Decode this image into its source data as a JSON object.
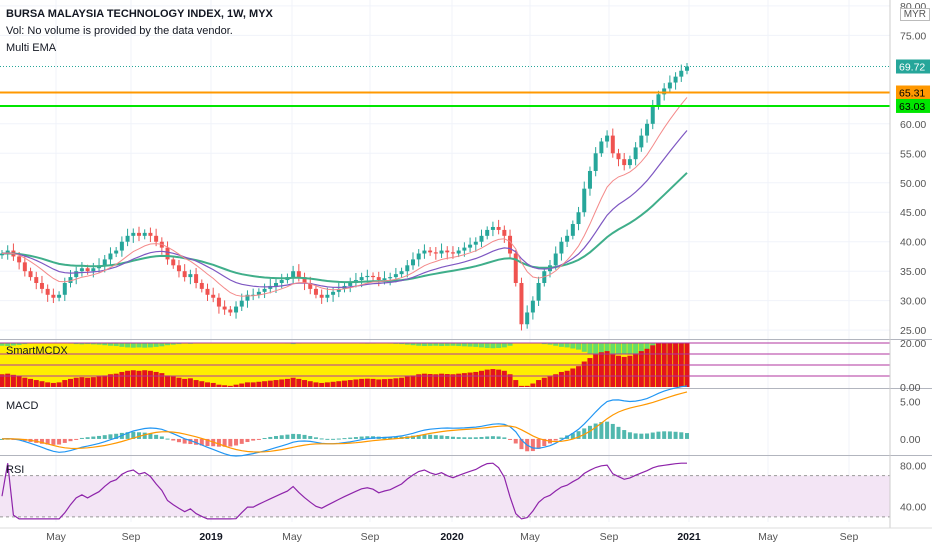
{
  "header": {
    "title": "BURSA MALAYSIA TECHNOLOGY INDEX, 1W, MYX",
    "vol_note": "Vol: No volume is provided by the data vendor.",
    "indicator": "Multi EMA",
    "currency": "MYR"
  },
  "colors": {
    "up": "#26a69a",
    "down": "#ef5350",
    "ema1": "#f48a8a",
    "ema2": "#7e57c2",
    "ema3": "#3fae8a",
    "orange_line": "#ff9800",
    "green_line": "#00e600",
    "last_price": "#26a69a",
    "macd": "#2196f3",
    "signal": "#ff9800",
    "rsi": "#8e24aa",
    "rsi_band": "#f3e5f5",
    "mcdx_red": "#e3141c",
    "mcdx_yellow": "#ffee00",
    "mcdx_green": "#66dd66"
  },
  "chart_data": [
    {
      "type": "candlestick",
      "title": "BURSA MALAYSIA TECHNOLOGY INDEX, 1W, MYX",
      "x_ticks": [
        "May",
        "Sep",
        "2019",
        "May",
        "Sep",
        "2020",
        "May",
        "Sep",
        "2021",
        "May",
        "Sep"
      ],
      "y_ticks": [
        "80.00",
        "75.00",
        "60.00",
        "55.00",
        "50.00",
        "45.00",
        "40.00",
        "35.00",
        "30.00",
        "25.00"
      ],
      "ylim": [
        23.5,
        81
      ],
      "horizontal_lines": [
        {
          "label": "65.31",
          "value": 65.31,
          "color": "orange"
        },
        {
          "label": "63.03",
          "value": 63.03,
          "color": "green"
        }
      ],
      "last_price": {
        "label": "69.72",
        "value": 69.72
      },
      "series_close": [
        38,
        38.5,
        37.5,
        36.5,
        35,
        34,
        33,
        32,
        31,
        30.5,
        31,
        33,
        34,
        35,
        35.5,
        35,
        35.5,
        36,
        37,
        38,
        38.5,
        40,
        41,
        41.5,
        41,
        41.5,
        41,
        40,
        39,
        37,
        36,
        35,
        34,
        34.5,
        33,
        32,
        31,
        30.5,
        29,
        28.5,
        28,
        29,
        30,
        31,
        31,
        31.5,
        32,
        32.5,
        33,
        33.5,
        34,
        35,
        34,
        33,
        32,
        31,
        30.5,
        31,
        31.5,
        32,
        32.5,
        33,
        33.5,
        34,
        34.2,
        34,
        33.5,
        33.8,
        34,
        34.5,
        35,
        36,
        37,
        38,
        38.5,
        38.2,
        38,
        38.5,
        38.2,
        38,
        38.5,
        39,
        39.5,
        40,
        41,
        42,
        42.5,
        42,
        41,
        38,
        33,
        26,
        28,
        30,
        33,
        35,
        36,
        38,
        40,
        41,
        43,
        45,
        49,
        52,
        55,
        57,
        58,
        55,
        54,
        53,
        54,
        56,
        58,
        60,
        63,
        65,
        66,
        67,
        68,
        69,
        69.72
      ],
      "ema": [
        {
          "period": "fast",
          "color": "#f48a8a"
        },
        {
          "period": "mid",
          "color": "#7e57c2"
        },
        {
          "period": "slow",
          "color": "#3fae8a"
        }
      ]
    },
    {
      "type": "bar",
      "title": "SmartMCDX",
      "y_ticks": [
        "20.00",
        "0.00"
      ],
      "ylim": [
        0,
        20
      ]
    },
    {
      "type": "line",
      "title": "MACD",
      "y_ticks": [
        "5.00",
        "0.00"
      ],
      "ylim": [
        -2,
        6.5
      ],
      "series": [
        {
          "name": "MACD"
        },
        {
          "name": "Signal"
        }
      ]
    },
    {
      "type": "line",
      "title": "RSI",
      "y_ticks": [
        "80.00",
        "40.00"
      ],
      "ylim": [
        25,
        88
      ],
      "band": [
        30,
        70
      ]
    }
  ]
}
